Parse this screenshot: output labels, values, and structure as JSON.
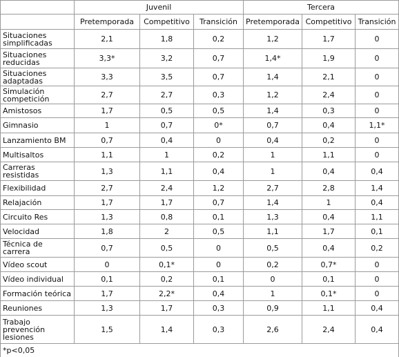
{
  "table": {
    "groups": [
      "Juvenil",
      "Tercera"
    ],
    "columns": [
      "Pretemporada",
      "Competitivo",
      "Transición",
      "Pretemporada",
      "Competitivo",
      "Transición"
    ],
    "rows": [
      [
        "Situaciones simplificadas",
        "2,1",
        "1,8",
        "0,2",
        "1,2",
        "1,7",
        "0"
      ],
      [
        "Situaciones reducidas",
        "3,3*",
        "3,2",
        "0,7",
        "1,4*",
        "1,9",
        "0"
      ],
      [
        "Situaciones adaptadas",
        "3,3",
        "3,5",
        "0,7",
        "1,4",
        "2,1",
        "0"
      ],
      [
        "Simulación competición",
        "2,7",
        "2,7",
        "0,3",
        "1,2",
        "2,4",
        "0"
      ],
      [
        "Amistosos",
        "1,7",
        "0,5",
        "0,5",
        "1,4",
        "0,3",
        "0"
      ],
      [
        "Gimnasio",
        "1",
        "0,7",
        "0*",
        "0,7",
        "0,4",
        "1,1*"
      ],
      [
        "Lanzamiento BM",
        "0,7",
        "0,4",
        "0",
        "0,4",
        "0,2",
        "0"
      ],
      [
        "Multisaltos",
        "1,1",
        "1",
        "0,2",
        "1",
        "1,1",
        "0"
      ],
      [
        "Carreras resistidas",
        "1,3",
        "1,1",
        "0,4",
        "1",
        "0,4",
        "0,4"
      ],
      [
        "Flexibilidad",
        "2,7",
        "2,4",
        "1,2",
        "2,7",
        "2,8",
        "1,4"
      ],
      [
        "Relajación",
        "1,7",
        "1,7",
        "0,7",
        "1,4",
        "1",
        "0,4"
      ],
      [
        "Circuito Res",
        "1,3",
        "0,8",
        "0,1",
        "1,3",
        "0,4",
        "1,1"
      ],
      [
        "Velocidad",
        "1,8",
        "2",
        "0,5",
        "1,1",
        "1,7",
        "0,1"
      ],
      [
        "Técnica de carrera",
        "0,7",
        "0,5",
        "0",
        "0,5",
        "0,4",
        "0,2"
      ],
      [
        "Vídeo scout",
        "0",
        "0,1*",
        "0",
        "0,2",
        "0,7*",
        "0"
      ],
      [
        "Vídeo individual",
        "0,1",
        "0,2",
        "0,1",
        "0",
        "0,1",
        "0"
      ],
      [
        "Formación teórica",
        "1,7",
        "2,2*",
        "0,4",
        "1",
        "0,1*",
        "0"
      ],
      [
        "Reuniones",
        "1,3",
        "1,7",
        "0,3",
        "0,9",
        "1,1",
        "0,4"
      ],
      [
        "Trabajo prevención lesiones",
        "1,5",
        "1,4",
        "0,3",
        "2,6",
        "2,4",
        "0,4"
      ]
    ],
    "footnote": "*p<0,05"
  }
}
